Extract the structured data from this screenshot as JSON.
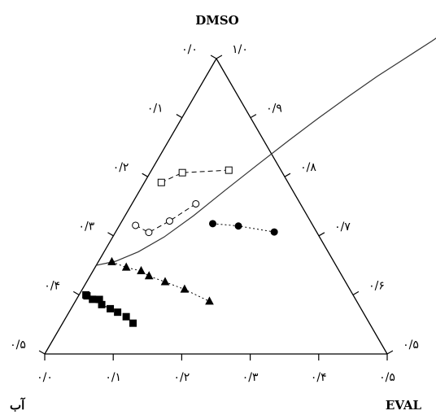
{
  "chart_data": {
    "type": "scatter",
    "subtype": "ternary",
    "title": "",
    "corners": {
      "top": "DMSO",
      "bottom_left": "آب",
      "bottom_right": "EVAL"
    },
    "bottom_axis": {
      "range": [
        0,
        0.5
      ],
      "tick_values": [
        0,
        0.1,
        0.2,
        0.3,
        0.4,
        0.5
      ],
      "tick_labels": [
        "۰/۰",
        "۰/۱",
        "۰/۲",
        "۰/۳",
        "۰/۴",
        "۰/۵"
      ]
    },
    "left_axis": {
      "range": [
        0,
        0.5
      ],
      "tick_values": [
        0,
        0.1,
        0.2,
        0.3,
        0.4,
        0.5
      ],
      "tick_labels": [
        "۰/۰",
        "۰/۱",
        "۰/۲",
        "۰/۳",
        "۰/۴",
        "۰/۵"
      ]
    },
    "right_axis": {
      "range": [
        0.5,
        1.0
      ],
      "tick_values": [
        1.0,
        0.9,
        0.8,
        0.7,
        0.6,
        0.5
      ],
      "tick_labels": [
        "۱/۰",
        "۰/۹",
        "۰/۸",
        "۰/۷",
        "۰/۶",
        "۰/۵"
      ]
    },
    "binodal_curve": [
      {
        "eval": 0.0,
        "water": 0.15
      },
      {
        "eval": 0.025,
        "water": 0.157
      },
      {
        "eval": 0.05,
        "water": 0.173
      },
      {
        "eval": 0.075,
        "water": 0.198
      },
      {
        "eval": 0.1,
        "water": 0.234
      },
      {
        "eval": 0.125,
        "water": 0.278
      },
      {
        "eval": 0.15,
        "water": 0.32
      },
      {
        "eval": 0.175,
        "water": 0.361
      },
      {
        "eval": 0.2,
        "water": 0.4
      },
      {
        "eval": 0.225,
        "water": 0.436
      },
      {
        "eval": 0.25,
        "water": 0.47
      },
      {
        "eval": 0.275,
        "water": 0.5
      },
      {
        "eval": 0.3,
        "water": 0.53
      },
      {
        "eval": 0.32,
        "water": 0.556
      },
      {
        "eval": 0.34,
        "water": 0.582
      },
      {
        "eval": 0.36,
        "water": 0.604
      },
      {
        "eval": 0.38,
        "water": 0.62
      }
    ],
    "series": [
      {
        "marker": "square-filled",
        "line": "dotted",
        "points": [
          {
            "eval": 0.01,
            "water": 0.1
          },
          {
            "eval": 0.0123,
            "water": 0.0984
          },
          {
            "eval": 0.0234,
            "water": 0.0925
          },
          {
            "eval": 0.0335,
            "water": 0.0923
          },
          {
            "eval": 0.0413,
            "water": 0.0836
          },
          {
            "eval": 0.0573,
            "water": 0.0766
          },
          {
            "eval": 0.071,
            "water": 0.0707
          },
          {
            "eval": 0.0873,
            "water": 0.0631
          },
          {
            "eval": 0.1028,
            "water": 0.0521
          }
        ]
      },
      {
        "marker": "triangle-filled",
        "line": "dotted",
        "points": [
          {
            "eval": 0.0199,
            "water": 0.1558
          },
          {
            "eval": 0.0455,
            "water": 0.1466
          },
          {
            "eval": 0.0703,
            "water": 0.1405
          },
          {
            "eval": 0.0862,
            "water": 0.1319
          },
          {
            "eval": 0.1147,
            "water": 0.1219
          },
          {
            "eval": 0.1494,
            "water": 0.1093
          },
          {
            "eval": 0.1959,
            "water": 0.089
          }
        ]
      },
      {
        "marker": "circle-open",
        "line": "dashed",
        "points": [
          {
            "eval": 0.0235,
            "water": 0.2177
          },
          {
            "eval": 0.0488,
            "water": 0.2058
          },
          {
            "eval": 0.0694,
            "water": 0.2251
          },
          {
            "eval": 0.0932,
            "water": 0.2542
          }
        ]
      },
      {
        "marker": "circle-filled",
        "line": "dotted",
        "points": [
          {
            "eval": 0.1347,
            "water": 0.2206
          },
          {
            "eval": 0.1742,
            "water": 0.2166
          },
          {
            "eval": 0.2316,
            "water": 0.2065
          }
        ]
      },
      {
        "marker": "square-open",
        "line": "dashed",
        "points": [
          {
            "eval": 0.0247,
            "water": 0.2903
          },
          {
            "eval": 0.0471,
            "water": 0.3069
          },
          {
            "eval": 0.1128,
            "water": 0.3111
          }
        ]
      }
    ],
    "legend": "none",
    "grid": false
  }
}
